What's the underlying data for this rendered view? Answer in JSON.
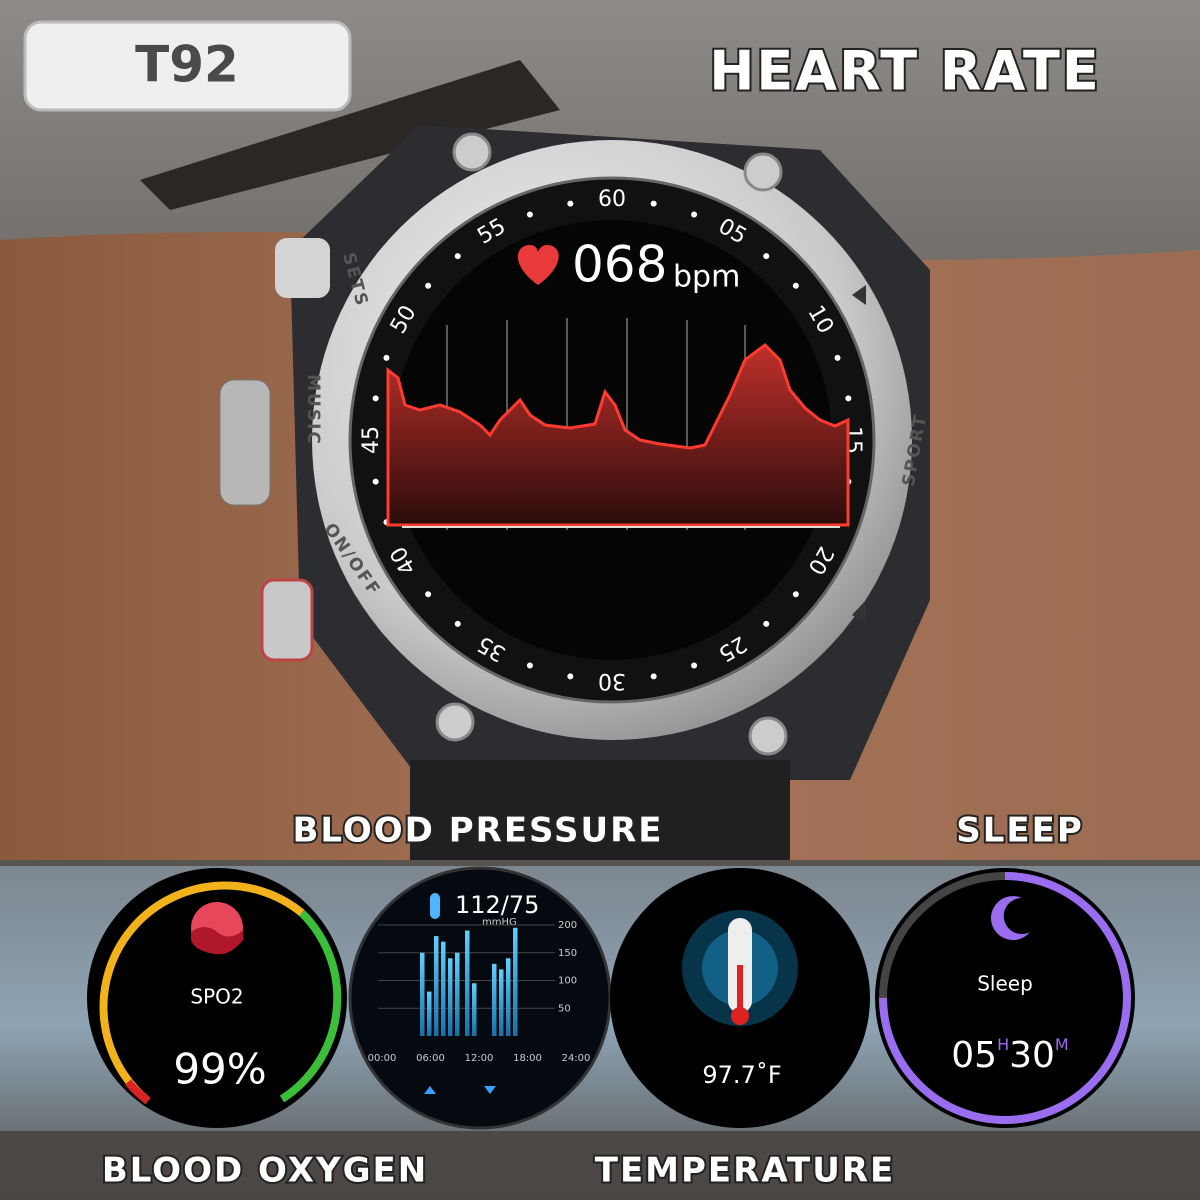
{
  "header": {
    "model": "T92",
    "feature": "HEART RATE"
  },
  "watch": {
    "heart_rate": "068",
    "unit": "bpm",
    "bezel": [
      "60",
      "05",
      "10",
      "15",
      "20",
      "25",
      "30",
      "35",
      "40",
      "45",
      "50",
      "55"
    ],
    "buttons": {
      "sets": "SETS",
      "music": "MUSIC",
      "power": "ON/OFF",
      "sport": "SPORT"
    }
  },
  "labels": {
    "blood_pressure": "BLOOD PRESSURE",
    "sleep": "SLEEP",
    "blood_oxygen": "BLOOD OXYGEN",
    "temperature": "TEMPERATURE"
  },
  "spo2": {
    "label": "SPO2",
    "value": "99%"
  },
  "blood_pressure": {
    "reading": "112/75",
    "unit": "mmHG",
    "yticks": [
      200,
      150,
      100,
      50
    ],
    "xticks": [
      "00:00",
      "06:00",
      "12:00",
      "18:00",
      "24:00"
    ],
    "bars": [
      150,
      80,
      180,
      170,
      140,
      150,
      190,
      95,
      130,
      120,
      140,
      195
    ]
  },
  "temperature": {
    "value": "97.7˚F"
  },
  "sleep": {
    "label": "Sleep",
    "hours": "05",
    "h": "H",
    "minutes": "30",
    "m": "M"
  }
}
